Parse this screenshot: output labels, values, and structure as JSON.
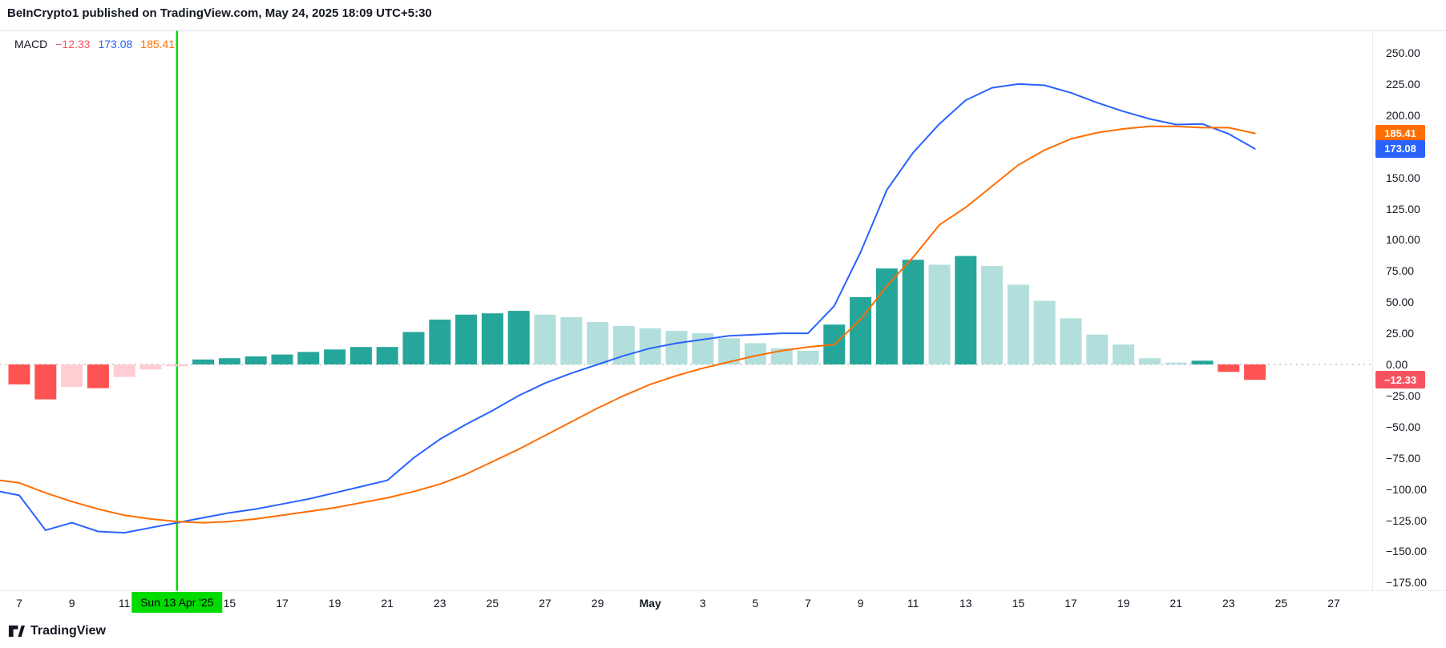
{
  "header": {
    "attribution": "BeInCrypto1 published on TradingView.com, May 24, 2025 18:09 UTC+5:30"
  },
  "legend": {
    "indicator": "MACD",
    "values": [
      {
        "text": "−12.33",
        "color": "#F7525F"
      },
      {
        "text": "173.08",
        "color": "#2962FF"
      },
      {
        "text": "185.41",
        "color": "#FF6D00"
      }
    ]
  },
  "colors": {
    "macd_line": "#2962FF",
    "signal_line": "#FF6D00",
    "hist_grow_above": "#26A69A",
    "hist_fall_above": "#B2DFDB",
    "hist_grow_below": "#FFCDD2",
    "hist_fall_below": "#FF5252",
    "marker_line": "#00DC00",
    "zero_line": "#9DA2AB",
    "text": "#131722"
  },
  "footer": {
    "brand": "TradingView"
  },
  "chart_data": {
    "type": "bar",
    "subtype": "macd-indicator",
    "title": "MACD",
    "grid": false,
    "legend_position": "top-left",
    "x": [
      "Apr 7",
      "Apr 8",
      "Apr 9",
      "Apr 10",
      "Apr 11",
      "Apr 12",
      "Apr 13",
      "Apr 14",
      "Apr 15",
      "Apr 16",
      "Apr 17",
      "Apr 18",
      "Apr 19",
      "Apr 20",
      "Apr 21",
      "Apr 22",
      "Apr 23",
      "Apr 24",
      "Apr 25",
      "Apr 26",
      "Apr 27",
      "Apr 28",
      "Apr 29",
      "Apr 30",
      "May 1",
      "May 2",
      "May 3",
      "May 4",
      "May 5",
      "May 6",
      "May 7",
      "May 8",
      "May 9",
      "May 10",
      "May 11",
      "May 12",
      "May 13",
      "May 14",
      "May 15",
      "May 16",
      "May 17",
      "May 18",
      "May 19",
      "May 20",
      "May 21",
      "May 22",
      "May 23",
      "May 24"
    ],
    "series": [
      {
        "name": "Histogram",
        "render": "bar",
        "values": [
          -16,
          -28,
          -18,
          -19,
          -10,
          -4,
          -1.5,
          4,
          5,
          6.5,
          8,
          10,
          12,
          14,
          14,
          26,
          36,
          40,
          41,
          43,
          40,
          38,
          34,
          31,
          29,
          27,
          25,
          21,
          17,
          13,
          11,
          32,
          54,
          77,
          84,
          80,
          87,
          79,
          64,
          51,
          37,
          24,
          16,
          5,
          1.5,
          3,
          -6,
          -12.33
        ],
        "bar_styles": [
          "fb",
          "fb",
          "gb",
          "fb",
          "gb",
          "gb",
          "gb",
          "ga",
          "ga",
          "ga",
          "ga",
          "ga",
          "ga",
          "ga",
          "ga",
          "ga",
          "ga",
          "ga",
          "ga",
          "ga",
          "fa",
          "fa",
          "fa",
          "fa",
          "fa",
          "fa",
          "fa",
          "fa",
          "fa",
          "fa",
          "fa",
          "ga",
          "ga",
          "ga",
          "ga",
          "fa",
          "ga",
          "fa",
          "fa",
          "fa",
          "fa",
          "fa",
          "fa",
          "fa",
          "fa",
          "ga",
          "fb",
          "fb"
        ]
      },
      {
        "name": "MACD line",
        "render": "line",
        "color": "#2962FF",
        "left_edge_value": -102,
        "values": [
          -105,
          -133,
          -127,
          -134,
          -135,
          -131,
          -127,
          -123,
          -119,
          -116,
          -112,
          -108,
          -103,
          -98,
          -93,
          -75,
          -60,
          -48,
          -37,
          -25,
          -15,
          -7,
          0,
          7,
          13,
          17,
          20,
          23,
          24,
          25,
          25,
          47,
          90,
          140,
          170,
          193,
          212,
          222,
          225,
          224,
          218,
          210,
          203,
          197,
          192.5,
          193,
          185,
          173.08
        ]
      },
      {
        "name": "Signal line",
        "render": "line",
        "color": "#FF6D00",
        "left_edge_value": -93,
        "values": [
          -95,
          -103,
          -110,
          -116,
          -121,
          -124,
          -126,
          -127,
          -126,
          -124,
          -121,
          -118,
          -115,
          -111,
          -107,
          -102,
          -96,
          -88,
          -78,
          -68,
          -57,
          -46,
          -35,
          -25,
          -16,
          -9,
          -3,
          2,
          7,
          11,
          14,
          16,
          36,
          63,
          86,
          112,
          126,
          143,
          160,
          172,
          181,
          186,
          189,
          191,
          191,
          190,
          190,
          185.41
        ]
      }
    ],
    "y_axis": {
      "min": -175,
      "max": 262,
      "ticks": [
        250,
        225,
        200,
        150,
        125,
        100,
        75,
        50,
        25,
        0,
        -25,
        -50,
        -75,
        -100,
        -125,
        -150,
        -175
      ],
      "tick_format": "two-decimals"
    },
    "x_ticks": [
      {
        "day": 0,
        "label": "7"
      },
      {
        "day": 2,
        "label": "9"
      },
      {
        "day": 4,
        "label": "11"
      },
      {
        "day": 8,
        "label": "15"
      },
      {
        "day": 10,
        "label": "17"
      },
      {
        "day": 12,
        "label": "19"
      },
      {
        "day": 14,
        "label": "21"
      },
      {
        "day": 16,
        "label": "23"
      },
      {
        "day": 18,
        "label": "25"
      },
      {
        "day": 20,
        "label": "27"
      },
      {
        "day": 22,
        "label": "29"
      },
      {
        "day": 24,
        "label": "May",
        "bold": true
      },
      {
        "day": 26,
        "label": "3"
      },
      {
        "day": 28,
        "label": "5"
      },
      {
        "day": 30,
        "label": "7"
      },
      {
        "day": 32,
        "label": "9"
      },
      {
        "day": 34,
        "label": "11"
      },
      {
        "day": 36,
        "label": "13"
      },
      {
        "day": 38,
        "label": "15"
      },
      {
        "day": 40,
        "label": "17"
      },
      {
        "day": 42,
        "label": "19"
      },
      {
        "day": 44,
        "label": "21"
      },
      {
        "day": 46,
        "label": "23"
      },
      {
        "day": 48,
        "label": "25"
      },
      {
        "day": 50,
        "label": "27"
      }
    ],
    "marker": {
      "day": 6,
      "label": "Sun 13 Apr '25"
    },
    "price_labels": [
      {
        "value": 185.41,
        "label": "185.41",
        "color": "#FF6D00"
      },
      {
        "value": 173.08,
        "label": "173.08",
        "color": "#2962FF"
      },
      {
        "value": -12.33,
        "label": "−12.33",
        "color": "#F7525F"
      }
    ]
  }
}
